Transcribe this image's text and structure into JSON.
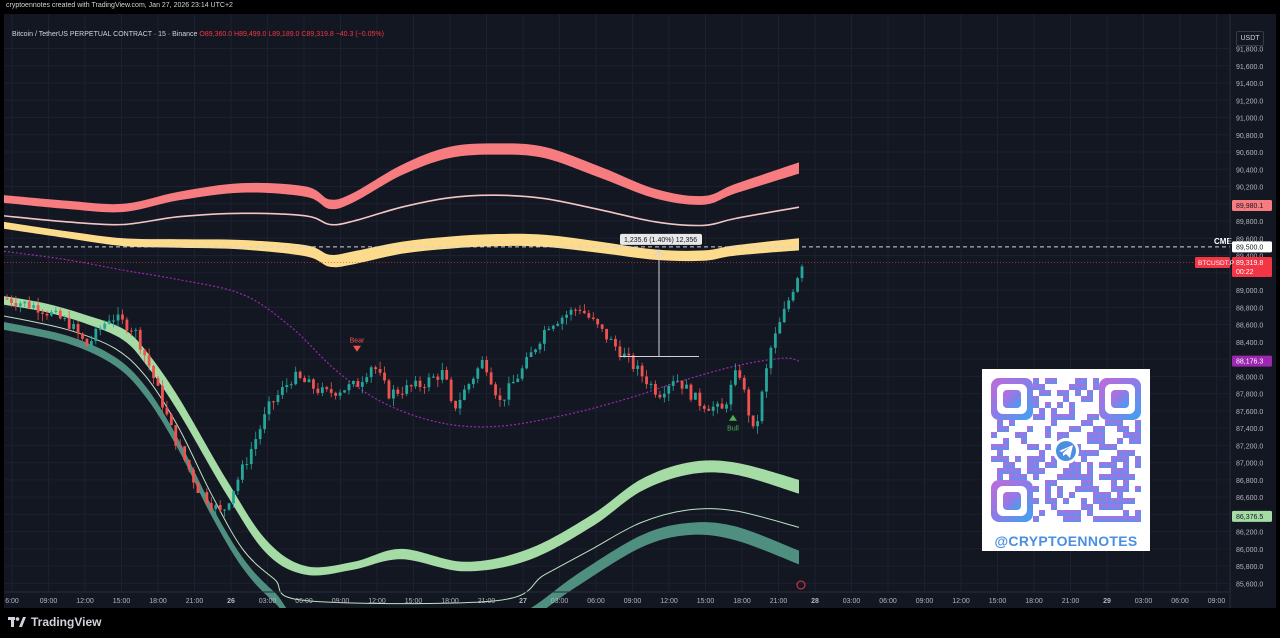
{
  "header": {
    "created_with": "cryptoennotes created with TradingView.com, Jan 27, 2026 23:14 UTC+2",
    "symbol": "Bitcoin / TetherUS PERPETUAL CONTRACT · 15 · Binance",
    "ohlc": {
      "o": "O89,360.0",
      "h": "H89,499.0",
      "l": "L89,189.0",
      "c": "C89,319.8",
      "chg": "−40.3 (−0.05%)"
    },
    "currency": "USDT"
  },
  "footer": {
    "brand": "TradingView"
  },
  "watermark": {
    "qr_label": "@CRYPTOENNOTES"
  },
  "colors": {
    "background": "#131722",
    "up": "#26a69a",
    "down": "#ef5350",
    "upper_band": "#f77c80",
    "mid_band": "#fcdc8c",
    "lower_band_1": "#a5dba5",
    "lower_band_2": "#4f8f80",
    "vwap": "#9c27b0"
  },
  "chart_data": {
    "type": "candlestick",
    "symbol": "BTCUSDT.P",
    "timeframe": "15",
    "y_range": [
      85600,
      91800
    ],
    "y_ticks": [
      "91,800.0",
      "91,600.0",
      "91,400.0",
      "91,200.0",
      "91,000.0",
      "90,800.0",
      "90,600.0",
      "90,400.0",
      "90,200.0",
      "90,000.0",
      "89,800.0",
      "89,600.0",
      "89,400.0",
      "89,200.0",
      "89,000.0",
      "88,800.0",
      "88,600.0",
      "88,400.0",
      "88,200.0",
      "88,000.0",
      "87,800.0",
      "87,600.0",
      "87,400.0",
      "87,200.0",
      "87,000.0",
      "86,800.0",
      "86,600.0",
      "86,400.0",
      "86,200.0",
      "86,000.0",
      "85,800.0",
      "85,600.0"
    ],
    "x_ticks": [
      "6:00",
      "09:00",
      "12:00",
      "15:00",
      "18:00",
      "21:00",
      "26",
      "03:00",
      "06:00",
      "09:00",
      "12:00",
      "15:00",
      "18:00",
      "21:00",
      "27",
      "03:00",
      "06:00",
      "09:00",
      "12:00",
      "15:00",
      "18:00",
      "21:00",
      "28",
      "03:00",
      "06:00",
      "09:00",
      "12:00",
      "15:00",
      "18:00",
      "21:00",
      "29",
      "03:00",
      "06:00",
      "09:00"
    ],
    "price_labels": [
      {
        "text": "89,980.1",
        "value": 89980.1,
        "color": "#f77c80"
      },
      {
        "text": "89,500.0",
        "value": 89500.0,
        "color": "#ffffff"
      },
      {
        "text": "89,319.8",
        "value": 89319.8,
        "color": "#f23645"
      },
      {
        "text": "88,176.3",
        "value": 88176.3,
        "color": "#9c27b0"
      },
      {
        "text": "86,376.5",
        "value": 86376.5,
        "color": "#a5dba5"
      }
    ],
    "symbol_tag": "BTCUSDT.P",
    "countdown": "00:22",
    "cme_label": "CME",
    "cme_level": 89500,
    "measure_label": "1,235.6 (1.40%) 12,356",
    "measure_from": 88230,
    "measure_to": 89466,
    "signals": [
      {
        "label": "Bear",
        "type": "sell",
        "price": 88320
      },
      {
        "label": "Bull",
        "type": "buy",
        "price": 87520
      }
    ],
    "bands": {
      "upper_outer_top": [
        [
          0,
          90100
        ],
        [
          8,
          90035
        ],
        [
          15,
          90000
        ],
        [
          22,
          90140
        ],
        [
          30,
          90240
        ],
        [
          38,
          90200
        ],
        [
          41,
          90050
        ],
        [
          44,
          90130
        ],
        [
          50,
          90450
        ],
        [
          56,
          90660
        ],
        [
          62,
          90700
        ],
        [
          68,
          90660
        ],
        [
          75,
          90430
        ],
        [
          82,
          90170
        ],
        [
          88,
          90090
        ],
        [
          92,
          90230
        ],
        [
          100,
          90480
        ]
      ],
      "upper_outer_bottom": [
        [
          0,
          90010
        ],
        [
          8,
          89940
        ],
        [
          15,
          89905
        ],
        [
          22,
          90040
        ],
        [
          30,
          90130
        ],
        [
          38,
          90080
        ],
        [
          41,
          89940
        ],
        [
          44,
          90020
        ],
        [
          50,
          90330
        ],
        [
          56,
          90530
        ],
        [
          62,
          90570
        ],
        [
          68,
          90530
        ],
        [
          75,
          90300
        ],
        [
          82,
          90060
        ],
        [
          88,
          89990
        ],
        [
          92,
          90120
        ],
        [
          100,
          90350
        ]
      ],
      "upper_inner": [
        [
          0,
          89860
        ],
        [
          8,
          89790
        ],
        [
          15,
          89760
        ],
        [
          22,
          89850
        ],
        [
          30,
          89890
        ],
        [
          38,
          89860
        ],
        [
          41,
          89760
        ],
        [
          44,
          89800
        ],
        [
          50,
          89960
        ],
        [
          56,
          90070
        ],
        [
          62,
          90100
        ],
        [
          68,
          90060
        ],
        [
          75,
          89930
        ],
        [
          82,
          89790
        ],
        [
          88,
          89750
        ],
        [
          92,
          89830
        ],
        [
          100,
          89960
        ]
      ],
      "mid_top": [
        [
          0,
          89790
        ],
        [
          8,
          89680
        ],
        [
          15,
          89600
        ],
        [
          22,
          89590
        ],
        [
          30,
          89580
        ],
        [
          38,
          89520
        ],
        [
          41,
          89410
        ],
        [
          44,
          89450
        ],
        [
          50,
          89560
        ],
        [
          56,
          89620
        ],
        [
          62,
          89650
        ],
        [
          68,
          89640
        ],
        [
          75,
          89560
        ],
        [
          82,
          89470
        ],
        [
          88,
          89460
        ],
        [
          92,
          89520
        ],
        [
          100,
          89600
        ]
      ],
      "mid_bottom": [
        [
          0,
          89710
        ],
        [
          8,
          89600
        ],
        [
          15,
          89510
        ],
        [
          22,
          89490
        ],
        [
          30,
          89470
        ],
        [
          38,
          89390
        ],
        [
          41,
          89270
        ],
        [
          44,
          89300
        ],
        [
          50,
          89420
        ],
        [
          56,
          89480
        ],
        [
          62,
          89510
        ],
        [
          68,
          89500
        ],
        [
          75,
          89430
        ],
        [
          82,
          89350
        ],
        [
          88,
          89340
        ],
        [
          92,
          89400
        ],
        [
          100,
          89460
        ]
      ],
      "vwap": [
        [
          0,
          89450
        ],
        [
          8,
          89350
        ],
        [
          15,
          89230
        ],
        [
          22,
          89120
        ],
        [
          30,
          88950
        ],
        [
          36,
          88580
        ],
        [
          42,
          88050
        ],
        [
          48,
          87680
        ],
        [
          55,
          87460
        ],
        [
          62,
          87420
        ],
        [
          70,
          87540
        ],
        [
          78,
          87730
        ],
        [
          85,
          87940
        ],
        [
          92,
          88120
        ],
        [
          98,
          88210
        ],
        [
          100,
          88176
        ]
      ],
      "lower1_top": [
        [
          0,
          88930
        ],
        [
          5,
          88850
        ],
        [
          10,
          88720
        ],
        [
          15,
          88550
        ],
        [
          18,
          88280
        ],
        [
          22,
          87750
        ],
        [
          28,
          86800
        ],
        [
          33,
          86100
        ],
        [
          38,
          85800
        ],
        [
          44,
          85850
        ],
        [
          50,
          86000
        ],
        [
          58,
          85850
        ],
        [
          66,
          86000
        ],
        [
          74,
          86400
        ],
        [
          80,
          86800
        ],
        [
          86,
          87000
        ],
        [
          92,
          87000
        ],
        [
          100,
          86800
        ]
      ],
      "lower1_bottom": [
        [
          0,
          88830
        ],
        [
          5,
          88750
        ],
        [
          10,
          88620
        ],
        [
          15,
          88420
        ],
        [
          18,
          88120
        ],
        [
          22,
          87580
        ],
        [
          28,
          86630
        ],
        [
          33,
          85950
        ],
        [
          38,
          85700
        ],
        [
          44,
          85760
        ],
        [
          50,
          85880
        ],
        [
          58,
          85740
        ],
        [
          66,
          85870
        ],
        [
          74,
          86260
        ],
        [
          80,
          86660
        ],
        [
          86,
          86860
        ],
        [
          92,
          86860
        ],
        [
          100,
          86640
        ]
      ],
      "lower_thin": [
        [
          0,
          88700
        ],
        [
          8,
          88540
        ],
        [
          14,
          88320
        ],
        [
          18,
          87980
        ],
        [
          22,
          87400
        ],
        [
          26,
          86650
        ],
        [
          30,
          86000
        ],
        [
          34,
          85650
        ],
        [
          38,
          85400
        ],
        [
          62,
          85400
        ],
        [
          68,
          85700
        ],
        [
          74,
          86000
        ],
        [
          80,
          86300
        ],
        [
          86,
          86450
        ],
        [
          92,
          86440
        ],
        [
          100,
          86250
        ]
      ],
      "lower2_top": [
        [
          0,
          88630
        ],
        [
          8,
          88470
        ],
        [
          14,
          88220
        ],
        [
          18,
          87860
        ],
        [
          22,
          87260
        ],
        [
          26,
          86520
        ],
        [
          30,
          85900
        ],
        [
          34,
          85500
        ],
        [
          40,
          85050
        ],
        [
          60,
          85050
        ],
        [
          66,
          85300
        ],
        [
          72,
          85700
        ],
        [
          80,
          86150
        ],
        [
          86,
          86300
        ],
        [
          92,
          86260
        ],
        [
          100,
          85980
        ]
      ],
      "lower2_bottom": [
        [
          0,
          88540
        ],
        [
          8,
          88380
        ],
        [
          14,
          88120
        ],
        [
          18,
          87740
        ],
        [
          22,
          87140
        ],
        [
          26,
          86400
        ],
        [
          30,
          85780
        ],
        [
          34,
          85380
        ],
        [
          40,
          84950
        ],
        [
          60,
          84950
        ],
        [
          66,
          85180
        ],
        [
          72,
          85560
        ],
        [
          80,
          86010
        ],
        [
          86,
          86160
        ],
        [
          92,
          86100
        ],
        [
          100,
          85820
        ]
      ]
    }
  }
}
